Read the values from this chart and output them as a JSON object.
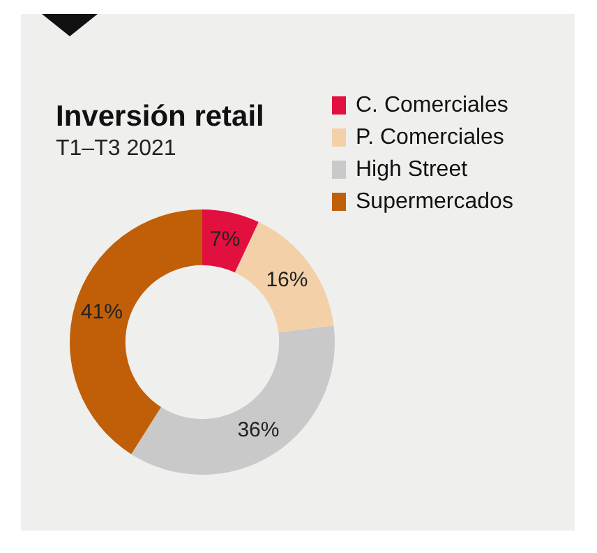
{
  "chart_data": {
    "type": "donut",
    "title": "Inversión retail",
    "subtitle": "T1–T3  2021",
    "categories": [
      "C. Comerciales",
      "P. Comerciales",
      "High Street",
      "Supermercados"
    ],
    "values": [
      7,
      16,
      36,
      41
    ],
    "colors": [
      "#e2103f",
      "#f4d0a8",
      "#c9c9c9",
      "#c05f08"
    ],
    "value_labels": [
      "7%",
      "16%",
      "36%",
      "41%"
    ],
    "legend": "top right"
  }
}
